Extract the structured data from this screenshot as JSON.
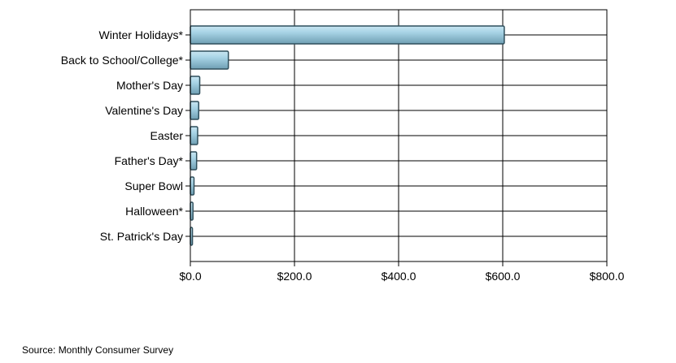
{
  "chart_data": {
    "type": "bar",
    "orientation": "horizontal",
    "categories": [
      "Winter Holidays*",
      "Back to School/College*",
      "Mother's Day",
      "Valentine's Day",
      "Easter",
      "Father's Day*",
      "Super Bowl",
      "Halloween*",
      "St. Patrick's Day"
    ],
    "values": [
      603,
      73,
      18,
      16,
      14,
      12,
      7,
      5,
      4
    ],
    "x_ticks": [
      "$0.0",
      "$200.0",
      "$400.0",
      "$600.0",
      "$800.0"
    ],
    "xlim": [
      0,
      800
    ],
    "grid": true,
    "bar_color": "#a8d4e6",
    "title": "",
    "xlabel": "",
    "ylabel": ""
  },
  "source": "Source: Monthly Consumer Survey"
}
